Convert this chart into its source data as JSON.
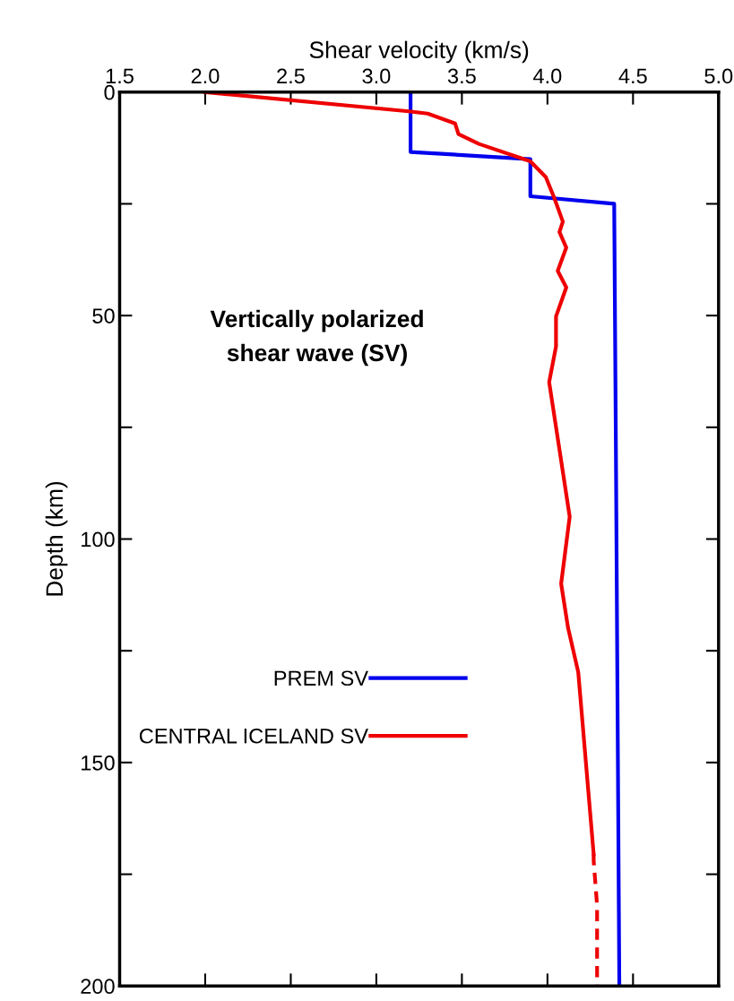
{
  "chart_data": {
    "type": "line",
    "xlabel": "Shear velocity (km/s)",
    "ylabel": "Depth (km)",
    "annotations": [
      "Vertically polarized\nshear wave (SV)"
    ],
    "xlim": [
      1.5,
      5.0
    ],
    "xticks": [
      1.5,
      {
        "value": 2,
        "label": "2.0"
      },
      2.5,
      {
        "value": 3,
        "label": "3.0"
      },
      3.5,
      {
        "value": 4,
        "label": "4.0"
      },
      4.5,
      {
        "value": 5,
        "label": "5.0"
      }
    ],
    "ylim": [
      200,
      0
    ],
    "yticks": [
      0,
      {
        "value": 25,
        "label": null
      },
      50,
      {
        "value": 75,
        "label": null
      },
      100,
      {
        "value": 125,
        "label": null
      },
      150,
      {
        "value": 175,
        "label": null
      },
      200
    ],
    "grid": false,
    "legend": "bottom left",
    "marker": "none",
    "series": [
      {
        "name": "PREM SV",
        "color": "#0000ee",
        "line_style": "solid",
        "x": [
          3.2,
          3.2,
          3.9,
          3.9,
          4.39,
          4.4,
          4.42
        ],
        "values": [
          0,
          13.4,
          15,
          23.3,
          25,
          80,
          200
        ]
      },
      {
        "name": "CENTRAL ICELAND SV",
        "color": "#ee0000",
        "line_style": "solid",
        "x": [
          2.0,
          3.19,
          3.3,
          3.46,
          3.48,
          3.6,
          3.9,
          3.99,
          4.04,
          4.09,
          4.07,
          4.11,
          4.06,
          4.11,
          4.05,
          4.05,
          4.01,
          4.13,
          4.08,
          4.12,
          4.18,
          4.27
        ],
        "values": [
          0,
          4.3,
          4.8,
          7.0,
          9.4,
          11.6,
          15.5,
          19,
          23.7,
          29,
          31.3,
          34.8,
          40,
          43.7,
          50.2,
          56.9,
          64.9,
          95,
          110,
          119.8,
          129.8,
          170.5
        ]
      },
      {
        "color": "#ee0000",
        "line_style": "dashed",
        "x": [
          4.27,
          4.27,
          4.29,
          4.29,
          4.29
        ],
        "values": [
          170.5,
          172,
          182,
          190,
          200
        ]
      }
    ]
  }
}
